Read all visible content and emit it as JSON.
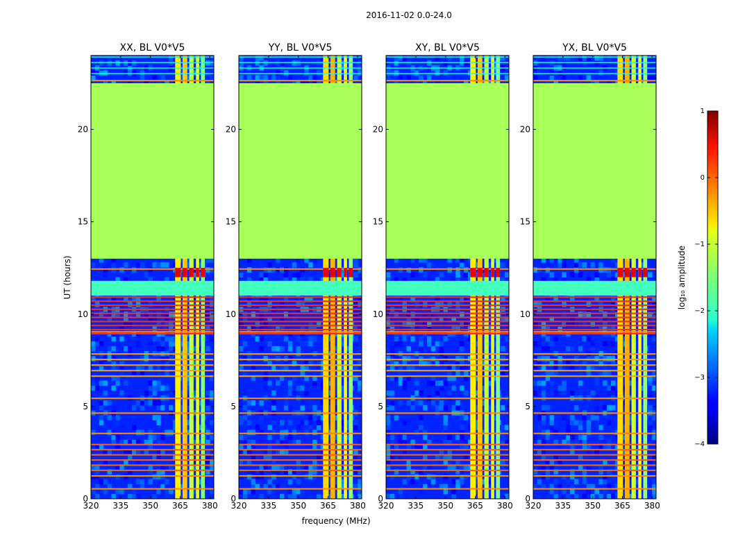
{
  "suptitle": "2016-11-02 0.0-24.0",
  "chart_data": {
    "type": "heatmap",
    "panels": [
      {
        "title": "XX, BL V0*V5",
        "pol": "XX"
      },
      {
        "title": "YY, BL V0*V5",
        "pol": "YY"
      },
      {
        "title": "XY, BL V0*V5",
        "pol": "XY"
      },
      {
        "title": "YX, BL V0*V5",
        "pol": "YX"
      }
    ],
    "xlabel": "frequency (MHz)",
    "ylabel": "UT (hours)",
    "xlim": [
      320,
      382
    ],
    "ylim": [
      0,
      24
    ],
    "xticks": [
      320,
      335,
      350,
      365,
      380
    ],
    "xtick_labels": [
      "320",
      "335",
      "350",
      "365",
      "380"
    ],
    "yticks": [
      0,
      5,
      10,
      15,
      20
    ],
    "ytick_labels": [
      "0",
      "5",
      "10",
      "15",
      "20"
    ],
    "colorbar": {
      "label": "log₁₀ amplitude",
      "colormap": "jet",
      "range": [
        -4,
        1
      ],
      "ticks": [
        1,
        0,
        -1,
        -2,
        -3,
        -4
      ],
      "tick_labels": [
        "1",
        "0",
        "−1",
        "−2",
        "−3",
        "−4"
      ]
    },
    "regions": {
      "flagged_gap_hours": [
        13.0,
        22.5
      ],
      "flagged_gap_value": -1.3,
      "rfi_band_mhz": [
        362.5,
        377.5
      ],
      "background_value": -3.2
    }
  }
}
